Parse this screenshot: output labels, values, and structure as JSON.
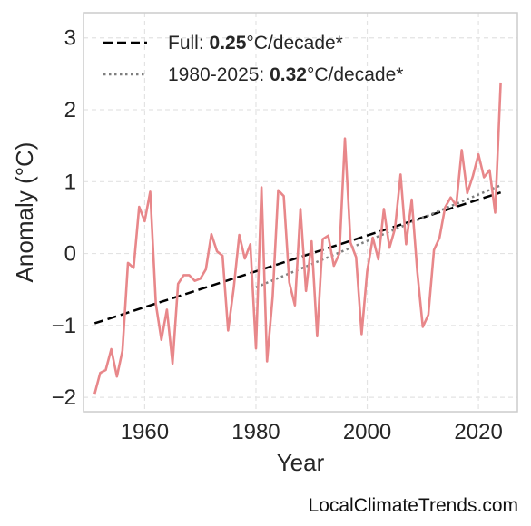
{
  "footer": {
    "source": "LocalClimateTrends.com"
  },
  "chart_data": {
    "type": "line",
    "xlabel": "Year",
    "ylabel": "Anomaly (°C)",
    "xlim": [
      1949,
      2027
    ],
    "ylim": [
      -2.2,
      3.35
    ],
    "xticks": [
      1960,
      1980,
      2000,
      2020
    ],
    "yticks": [
      -2,
      -1,
      0,
      1,
      2,
      3
    ],
    "ytick_labels": [
      "−2",
      "−1",
      "0",
      "1",
      "2",
      "3"
    ],
    "grid": true,
    "legend_position": "top-left",
    "colors": {
      "series": "#e8878a",
      "full_trend": "#000000",
      "recent_trend": "#7f7f7f"
    },
    "legend": [
      {
        "prefix": "Full: ",
        "value": "0.25",
        "suffix": "°C/decade*",
        "style": "dashed"
      },
      {
        "prefix": "1980-2025: ",
        "value": "0.32",
        "suffix": "°C/decade*",
        "style": "dotted"
      }
    ],
    "series": [
      {
        "x": [
          1951,
          1952,
          1953,
          1954,
          1955,
          1956,
          1957,
          1958,
          1959,
          1960,
          1961,
          1962,
          1963,
          1964,
          1965,
          1966,
          1967,
          1968,
          1969,
          1970,
          1971,
          1972,
          1973,
          1974,
          1975,
          1976,
          1977,
          1978,
          1979,
          1980,
          1981,
          1982,
          1983,
          1984,
          1985,
          1986,
          1987,
          1988,
          1989,
          1990,
          1991,
          1992,
          1993,
          1994,
          1995,
          1996,
          1997,
          1998,
          1999,
          2000,
          2001,
          2002,
          2003,
          2004,
          2005,
          2006,
          2007,
          2008,
          2009,
          2010,
          2011,
          2012,
          2013,
          2014,
          2015,
          2016,
          2017,
          2018,
          2019,
          2020,
          2021,
          2022,
          2023,
          2024
        ],
        "y": [
          -1.95,
          -1.66,
          -1.62,
          -1.33,
          -1.71,
          -1.35,
          -0.13,
          -0.2,
          0.65,
          0.45,
          0.86,
          -0.7,
          -1.2,
          -0.78,
          -1.53,
          -0.42,
          -0.3,
          -0.3,
          -0.38,
          -0.35,
          -0.22,
          0.27,
          0.03,
          -0.03,
          -1.07,
          -0.48,
          0.26,
          -0.07,
          0.13,
          -1.32,
          0.92,
          -1.5,
          -0.6,
          0.88,
          0.8,
          -0.4,
          -0.72,
          0.62,
          -0.52,
          0.17,
          -1.15,
          0.2,
          0.25,
          -0.17,
          0.0,
          1.6,
          0.15,
          -0.05,
          -1.12,
          -0.25,
          0.22,
          -0.08,
          0.62,
          0.08,
          0.35,
          1.1,
          0.13,
          0.75,
          -0.25,
          -1.02,
          -0.85,
          0.05,
          0.22,
          0.64,
          0.78,
          0.67,
          1.44,
          0.84,
          1.08,
          1.38,
          1.06,
          1.16,
          0.57,
          2.38
        ]
      }
    ],
    "trend_lines": [
      {
        "x": [
          1951,
          2024
        ],
        "y": [
          -0.97,
          0.85
        ],
        "style": "dashed"
      },
      {
        "x": [
          1980,
          2024
        ],
        "y": [
          -0.47,
          0.95
        ],
        "style": "dotted"
      }
    ]
  }
}
